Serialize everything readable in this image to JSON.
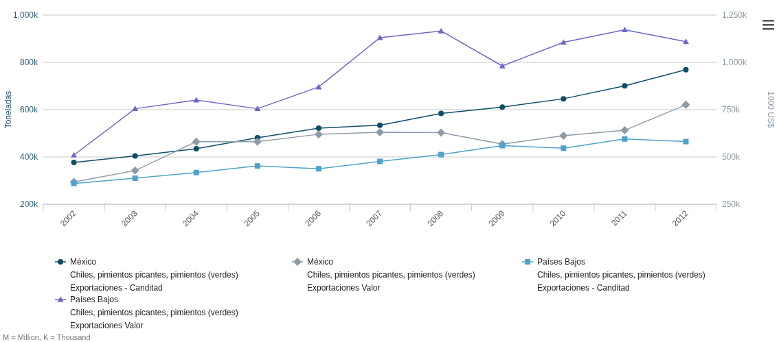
{
  "chart_data": {
    "type": "line",
    "ylabel": "Toneladas",
    "y2label": "1000 US$",
    "categories": [
      "2002",
      "2003",
      "2004",
      "2005",
      "2006",
      "2007",
      "2008",
      "2009",
      "2010",
      "2011",
      "2012"
    ],
    "series": [
      {
        "name": "México\nChiles, pimientos picantes, pimientos (verdes)\nExportaciones - Canditad",
        "color": "#0e4d68",
        "marker": "circle",
        "values": [
          377000,
          404000,
          435000,
          481000,
          522000,
          534000,
          584000,
          611000,
          646000,
          701000,
          769000
        ]
      },
      {
        "name": "México\nChiles, pimientos picantes, pimientos (verdes)\nExportaciones Valor",
        "color": "#8d9ba6",
        "marker": "diamond",
        "axis": "y2",
        "values": [
          368000,
          428000,
          581000,
          581000,
          620000,
          630000,
          629000,
          568000,
          612000,
          641000,
          776000
        ]
      },
      {
        "name": "Países Bajos\nChiles, pimientos picantes, pimientos (verdes)\nExportaciones - Canditad",
        "color": "#4ea2cb",
        "marker": "square",
        "values": [
          288000,
          310000,
          334000,
          362000,
          350000,
          381000,
          410000,
          448000,
          437000,
          476000,
          465000
        ]
      },
      {
        "name": "Países Bajos\nChiles, pimientos picantes, pimientos (verdes)\nExportaciones Valor",
        "color": "#6a68c8",
        "marker": "triangle",
        "axis": "y2",
        "values": [
          510000,
          755000,
          801000,
          755000,
          870000,
          1130000,
          1166000,
          981000,
          1106000,
          1172000,
          1110000
        ]
      }
    ],
    "ylim": [
      200000,
      1000000
    ],
    "yticks": [
      {
        "value": 200000,
        "label": "200k"
      },
      {
        "value": 400000,
        "label": "400k"
      },
      {
        "value": 600000,
        "label": "600k"
      },
      {
        "value": 800000,
        "label": "800k"
      },
      {
        "value": 1000000,
        "label": "1,000k"
      }
    ],
    "y2lim": [
      250000,
      1250000
    ],
    "y2ticks": [
      {
        "value": 250000,
        "label": "250k"
      },
      {
        "value": 500000,
        "label": "500k"
      },
      {
        "value": 750000,
        "label": "750k"
      },
      {
        "value": 1000000,
        "label": "1,000k"
      },
      {
        "value": 1250000,
        "label": "1,250k"
      }
    ],
    "grid": "y",
    "legend": "bottom",
    "annotations": [
      "M = Million, K = Thousand"
    ]
  }
}
